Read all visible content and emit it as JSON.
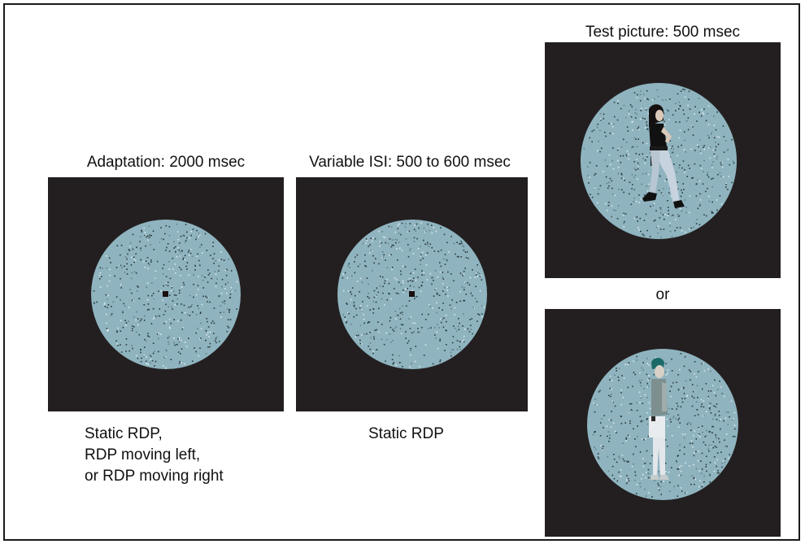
{
  "adaptation": {
    "title": "Adaptation: 2000 msec",
    "caption_lines": [
      "Static RDP,",
      "RDP moving left,",
      "or RDP moving right"
    ]
  },
  "isi": {
    "title": "Variable ISI: 500 to 600 msec",
    "caption": "Static RDP"
  },
  "test": {
    "title": "Test picture: 500 msec",
    "or_label": "or"
  },
  "colors": {
    "background": "#231f20",
    "dot_field": "#8fb4bf",
    "fixation": "#1a1010"
  }
}
